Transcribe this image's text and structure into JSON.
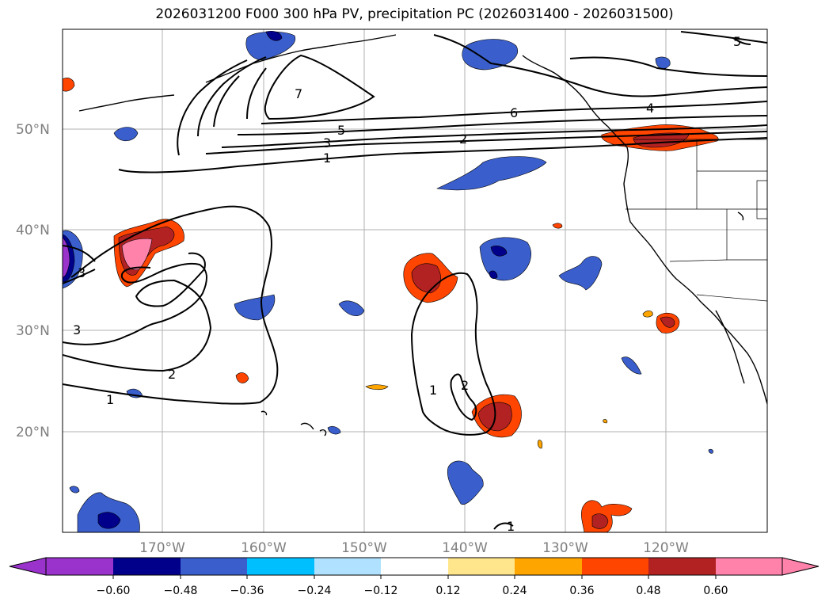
{
  "title": "2026031200 F000 300 hPa PV, precipitation PC (2026031400 - 2026031500)",
  "lat_labels": [
    "50°N",
    "40°N",
    "30°N",
    "20°N"
  ],
  "lon_labels": [
    "170°W",
    "160°W",
    "150°W",
    "140°W",
    "130°W",
    "120°W"
  ],
  "colorbar": {
    "colors": [
      "#9933cc",
      "#00008b",
      "#3a5fcd",
      "#00bfff",
      "#b0e2ff",
      "#ffffff",
      "#ffe68c",
      "#ffa500",
      "#ff4500",
      "#b22222",
      "#ff82ab",
      "#ff82ab"
    ],
    "tick_labels": [
      "-0.60",
      "-0.48",
      "-0.36",
      "-0.24",
      "-0.12",
      "0.12",
      "0.24",
      "0.36",
      "0.48",
      "0.60"
    ]
  },
  "contour_labels": [
    "1",
    "2",
    "3",
    "5",
    "7",
    "6",
    "4",
    "5",
    "1",
    "2",
    "3",
    "3",
    "2",
    "1",
    "1",
    "2",
    "1"
  ]
}
